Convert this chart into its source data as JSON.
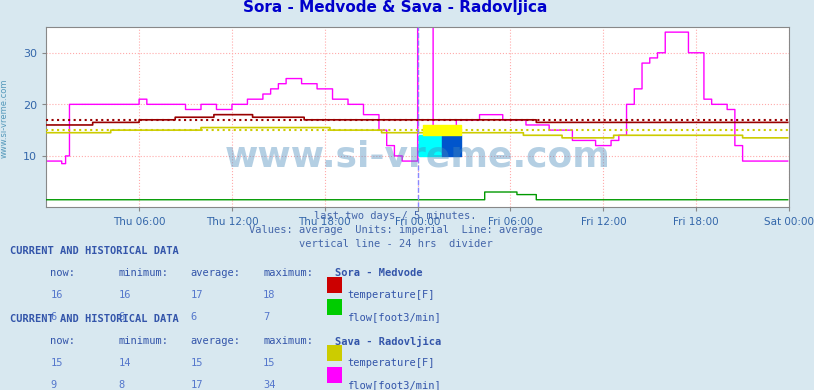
{
  "title": "Sora - Medvode & Sava - Radovljica",
  "title_color": "#0000cc",
  "bg_color": "#d8e8f0",
  "plot_bg_color": "#ffffff",
  "grid_color": "#ffaaaa",
  "axis_label_color": "#3366aa",
  "subtitle_lines": [
    "last two days / 5 minutes.",
    "Values: average  Units: imperial  Line: average",
    "vertical line - 24 hrs  divider"
  ],
  "watermark": "www.si-vreme.com",
  "watermark_color": "#4488bb",
  "left_label": "www.si-vreme.com",
  "x_tick_labels": [
    "Thu 06:00",
    "Thu 12:00",
    "Thu 18:00",
    "Fri 00:00",
    "Fri 06:00",
    "Fri 12:00",
    "Fri 18:00",
    "Sat 00:00"
  ],
  "x_tick_positions": [
    72,
    144,
    216,
    288,
    360,
    432,
    504,
    576
  ],
  "n_points": 576,
  "ylim": [
    0,
    35
  ],
  "yticks": [
    10,
    20,
    30
  ],
  "sora_temp_color": "#990000",
  "sora_temp_avg": 17,
  "sora_flow_color": "#009900",
  "sava_temp_color": "#cccc00",
  "sava_temp_avg": 15,
  "sava_flow_color": "#ff00ff",
  "divider_x": 288,
  "divider_color": "#8888ff",
  "table_color": "#3355aa",
  "val_color": "#5577cc",
  "table1_title": "CURRENT AND HISTORICAL DATA",
  "table1_station": "Sora - Medvode",
  "table1_rows": [
    {
      "label": "temperature[F]",
      "now": 16,
      "min": 16,
      "avg": 17,
      "max": 18,
      "color": "#cc0000"
    },
    {
      "label": "flow[foot3/min]",
      "now": 6,
      "min": 6,
      "avg": 6,
      "max": 7,
      "color": "#00cc00"
    }
  ],
  "table2_title": "CURRENT AND HISTORICAL DATA",
  "table2_station": "Sava - Radovljica",
  "table2_rows": [
    {
      "label": "temperature[F]",
      "now": 15,
      "min": 14,
      "avg": 15,
      "max": 15,
      "color": "#cccc00"
    },
    {
      "label": "flow[foot3/min]",
      "now": 9,
      "min": 8,
      "avg": 17,
      "max": 34,
      "color": "#ff00ff"
    }
  ]
}
